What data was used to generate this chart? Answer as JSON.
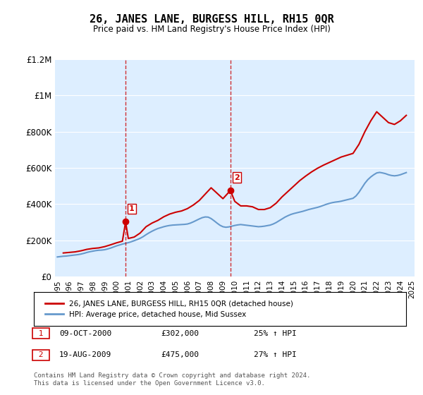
{
  "title": "26, JANES LANE, BURGESS HILL, RH15 0QR",
  "subtitle": "Price paid vs. HM Land Registry's House Price Index (HPI)",
  "legend_line1": "26, JANES LANE, BURGESS HILL, RH15 0QR (detached house)",
  "legend_line2": "HPI: Average price, detached house, Mid Sussex",
  "annotation1_label": "1",
  "annotation1_date": "09-OCT-2000",
  "annotation1_price": "£302,000",
  "annotation1_hpi": "25% ↑ HPI",
  "annotation2_label": "2",
  "annotation2_date": "19-AUG-2009",
  "annotation2_price": "£475,000",
  "annotation2_hpi": "27% ↑ HPI",
  "footnote": "Contains HM Land Registry data © Crown copyright and database right 2024.\nThis data is licensed under the Open Government Licence v3.0.",
  "chart_bg": "#ddeeff",
  "fig_bg": "#ffffff",
  "red_color": "#cc0000",
  "blue_color": "#6699cc",
  "ylim": [
    0,
    1200000
  ],
  "yticks": [
    0,
    200000,
    400000,
    600000,
    800000,
    1000000,
    1200000
  ],
  "ytick_labels": [
    "£0",
    "£200K",
    "£400K",
    "£600K",
    "£800K",
    "£1M",
    "£1.2M"
  ],
  "sale1_x": 2000.77,
  "sale1_y": 302000,
  "sale2_x": 2009.63,
  "sale2_y": 475000,
  "hpi_years": [
    1995,
    1995.25,
    1995.5,
    1995.75,
    1996,
    1996.25,
    1996.5,
    1996.75,
    1997,
    1997.25,
    1997.5,
    1997.75,
    1998,
    1998.25,
    1998.5,
    1998.75,
    1999,
    1999.25,
    1999.5,
    1999.75,
    2000,
    2000.25,
    2000.5,
    2000.75,
    2001,
    2001.25,
    2001.5,
    2001.75,
    2002,
    2002.25,
    2002.5,
    2002.75,
    2003,
    2003.25,
    2003.5,
    2003.75,
    2004,
    2004.25,
    2004.5,
    2004.75,
    2005,
    2005.25,
    2005.5,
    2005.75,
    2006,
    2006.25,
    2006.5,
    2006.75,
    2007,
    2007.25,
    2007.5,
    2007.75,
    2008,
    2008.25,
    2008.5,
    2008.75,
    2009,
    2009.25,
    2009.5,
    2009.75,
    2010,
    2010.25,
    2010.5,
    2010.75,
    2011,
    2011.25,
    2011.5,
    2011.75,
    2012,
    2012.25,
    2012.5,
    2012.75,
    2013,
    2013.25,
    2013.5,
    2013.75,
    2014,
    2014.25,
    2014.5,
    2014.75,
    2015,
    2015.25,
    2015.5,
    2015.75,
    2016,
    2016.25,
    2016.5,
    2016.75,
    2017,
    2017.25,
    2017.5,
    2017.75,
    2018,
    2018.25,
    2018.5,
    2018.75,
    2019,
    2019.25,
    2019.5,
    2019.75,
    2020,
    2020.25,
    2020.5,
    2020.75,
    2021,
    2021.25,
    2021.5,
    2021.75,
    2022,
    2022.25,
    2022.5,
    2022.75,
    2023,
    2023.25,
    2023.5,
    2023.75,
    2024,
    2024.25,
    2024.5
  ],
  "hpi_values": [
    108000,
    110000,
    112000,
    113000,
    115000,
    117000,
    119000,
    121000,
    124000,
    128000,
    133000,
    137000,
    140000,
    143000,
    145000,
    146000,
    148000,
    152000,
    157000,
    163000,
    169000,
    174000,
    179000,
    183000,
    187000,
    192000,
    198000,
    204000,
    211000,
    220000,
    231000,
    241000,
    250000,
    258000,
    265000,
    270000,
    275000,
    279000,
    282000,
    284000,
    285000,
    286000,
    287000,
    288000,
    290000,
    295000,
    302000,
    310000,
    318000,
    325000,
    329000,
    328000,
    320000,
    308000,
    295000,
    283000,
    275000,
    272000,
    274000,
    278000,
    282000,
    285000,
    287000,
    285000,
    283000,
    281000,
    279000,
    277000,
    275000,
    276000,
    278000,
    281000,
    284000,
    290000,
    298000,
    308000,
    318000,
    328000,
    336000,
    343000,
    348000,
    352000,
    356000,
    360000,
    365000,
    370000,
    374000,
    378000,
    382000,
    387000,
    393000,
    399000,
    404000,
    408000,
    411000,
    413000,
    416000,
    420000,
    424000,
    428000,
    432000,
    445000,
    465000,
    490000,
    515000,
    535000,
    550000,
    562000,
    572000,
    575000,
    572000,
    568000,
    562000,
    558000,
    556000,
    558000,
    562000,
    568000,
    574000
  ],
  "price_years": [
    1995.5,
    1996.0,
    1996.5,
    1997.0,
    1997.5,
    1998.0,
    1998.5,
    1999.0,
    1999.5,
    2000.0,
    2000.5,
    2000.77,
    2001.0,
    2001.5,
    2002.0,
    2002.5,
    2003.0,
    2003.5,
    2004.0,
    2004.5,
    2005.0,
    2005.5,
    2006.0,
    2006.5,
    2007.0,
    2007.5,
    2008.0,
    2008.5,
    2009.0,
    2009.63,
    2010.0,
    2010.5,
    2011.0,
    2011.5,
    2012.0,
    2012.5,
    2013.0,
    2013.5,
    2014.0,
    2014.5,
    2015.0,
    2015.5,
    2016.0,
    2016.5,
    2017.0,
    2017.5,
    2018.0,
    2018.5,
    2019.0,
    2019.5,
    2020.0,
    2020.5,
    2021.0,
    2021.5,
    2022.0,
    2022.5,
    2023.0,
    2023.5,
    2024.0,
    2024.5
  ],
  "price_values": [
    130000,
    133000,
    136000,
    142000,
    150000,
    155000,
    158000,
    165000,
    175000,
    186000,
    195000,
    302000,
    210000,
    218000,
    240000,
    275000,
    295000,
    310000,
    330000,
    345000,
    355000,
    362000,
    375000,
    395000,
    420000,
    455000,
    490000,
    460000,
    430000,
    475000,
    415000,
    390000,
    390000,
    385000,
    370000,
    370000,
    380000,
    405000,
    440000,
    470000,
    500000,
    530000,
    555000,
    578000,
    598000,
    615000,
    630000,
    645000,
    660000,
    670000,
    680000,
    730000,
    800000,
    860000,
    910000,
    880000,
    850000,
    840000,
    860000,
    890000
  ],
  "xtick_years": [
    1995,
    1996,
    1997,
    1998,
    1999,
    2000,
    2001,
    2002,
    2003,
    2004,
    2005,
    2006,
    2007,
    2008,
    2009,
    2010,
    2011,
    2012,
    2013,
    2014,
    2015,
    2016,
    2017,
    2018,
    2019,
    2020,
    2021,
    2022,
    2023,
    2024,
    2025
  ]
}
